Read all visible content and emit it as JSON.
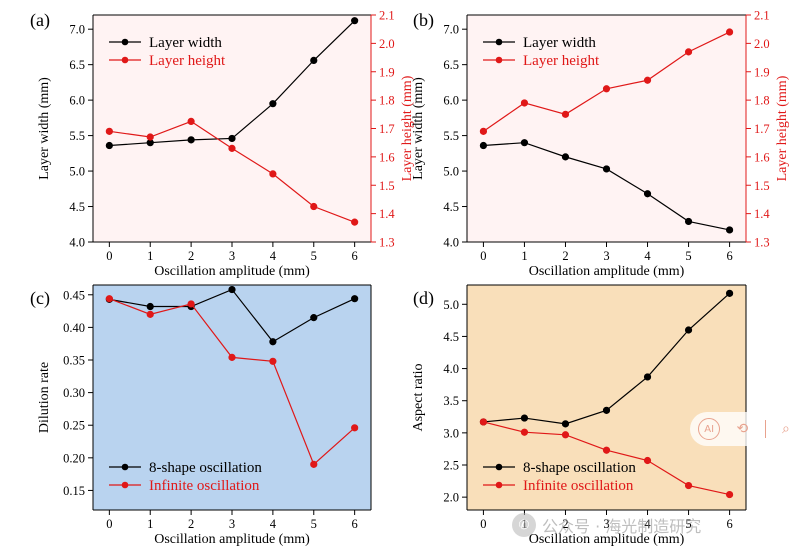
{
  "panels": [
    {
      "label": "(a)",
      "bg": "#fff3f3",
      "chart_data": {
        "type": "line",
        "dual_axis": true,
        "x": [
          0,
          1,
          2,
          3,
          4,
          5,
          6
        ],
        "xlabel": "Oscillation amplitude (mm)",
        "xlim": [
          -0.4,
          6.4
        ],
        "ylabel": "Layer width (mm)",
        "ylim": [
          4.0,
          7.2
        ],
        "yticks": [
          "4.0",
          "4.5",
          "5.0",
          "5.5",
          "6.0",
          "6.5",
          "7.0"
        ],
        "y2label": "Layer height (mm)",
        "y2lim": [
          1.3,
          2.1
        ],
        "y2ticks": [
          "1.3",
          "1.4",
          "1.5",
          "1.6",
          "1.7",
          "1.8",
          "1.9",
          "2.0",
          "2.1"
        ],
        "legend_position": "top-left",
        "series": [
          {
            "name": "Layer width",
            "axis": "left",
            "color": "#000000",
            "values": [
              5.36,
              5.4,
              5.44,
              5.46,
              5.95,
              6.56,
              7.12
            ]
          },
          {
            "name": "Layer height",
            "axis": "right",
            "color": "#e01818",
            "values": [
              1.69,
              1.67,
              1.725,
              1.63,
              1.54,
              1.425,
              1.37
            ]
          }
        ]
      }
    },
    {
      "label": "(b)",
      "bg": "#fff3f3",
      "chart_data": {
        "type": "line",
        "dual_axis": true,
        "x": [
          0,
          1,
          2,
          3,
          4,
          5,
          6
        ],
        "xlabel": "Oscillation amplitude (mm)",
        "xlim": [
          -0.4,
          6.4
        ],
        "ylabel": "Layer width (mm)",
        "ylim": [
          4.0,
          7.2
        ],
        "yticks": [
          "4.0",
          "4.5",
          "5.0",
          "5.5",
          "6.0",
          "6.5",
          "7.0"
        ],
        "y2label": "Layer height (mm)",
        "y2lim": [
          1.3,
          2.1
        ],
        "y2ticks": [
          "1.3",
          "1.4",
          "1.5",
          "1.6",
          "1.7",
          "1.8",
          "1.9",
          "2.0",
          "2.1"
        ],
        "legend_position": "top-left",
        "series": [
          {
            "name": "Layer width",
            "axis": "left",
            "color": "#000000",
            "values": [
              5.36,
              5.4,
              5.2,
              5.03,
              4.68,
              4.29,
              4.17
            ]
          },
          {
            "name": "Layer height",
            "axis": "right",
            "color": "#e01818",
            "values": [
              1.69,
              1.79,
              1.75,
              1.84,
              1.87,
              1.97,
              2.04
            ]
          }
        ]
      }
    },
    {
      "label": "(c)",
      "bg": "#b9d3ef",
      "chart_data": {
        "type": "line",
        "x": [
          0,
          1,
          2,
          3,
          4,
          5,
          6
        ],
        "xlabel": "Oscillation amplitude (mm)",
        "xlim": [
          -0.4,
          6.4
        ],
        "ylabel": "Dilution rate",
        "ylim": [
          0.12,
          0.465
        ],
        "yticks": [
          "0.15",
          "0.20",
          "0.25",
          "0.30",
          "0.35",
          "0.40",
          "0.45"
        ],
        "legend_position": "bottom-left",
        "series": [
          {
            "name": "8-shape oscillation",
            "axis": "left",
            "color": "#000000",
            "values": [
              0.443,
              0.432,
              0.432,
              0.458,
              0.378,
              0.415,
              0.444
            ]
          },
          {
            "name": "Infinite oscillation",
            "axis": "left",
            "color": "#e01818",
            "values": [
              0.444,
              0.42,
              0.436,
              0.354,
              0.348,
              0.19,
              0.246
            ]
          }
        ]
      }
    },
    {
      "label": "(d)",
      "bg": "#f9dfba",
      "chart_data": {
        "type": "line",
        "x": [
          0,
          1,
          2,
          3,
          4,
          5,
          6
        ],
        "xlabel": "Oscillation amplitude (mm)",
        "xlim": [
          -0.4,
          6.4
        ],
        "ylabel": "Aspect ratio",
        "ylim": [
          1.8,
          5.3
        ],
        "yticks": [
          "2.0",
          "2.5",
          "3.0",
          "3.5",
          "4.0",
          "4.5",
          "5.0"
        ],
        "legend_position": "bottom-left",
        "series": [
          {
            "name": "8-shape oscillation",
            "axis": "left",
            "color": "#000000",
            "values": [
              3.17,
              3.23,
              3.14,
              3.35,
              3.87,
              4.6,
              5.17
            ]
          },
          {
            "name": "Infinite oscillation",
            "axis": "left",
            "color": "#e01818",
            "values": [
              3.17,
              3.01,
              2.97,
              2.73,
              2.57,
              2.18,
              2.04
            ]
          }
        ]
      }
    }
  ],
  "watermark": {
    "icon": "wechat-icon",
    "text": "公众号 · 海光制造研究"
  },
  "ai_badge": {
    "ai_text": "AI",
    "icons": [
      "ai-icon",
      "translate-icon",
      "search-icon"
    ]
  }
}
